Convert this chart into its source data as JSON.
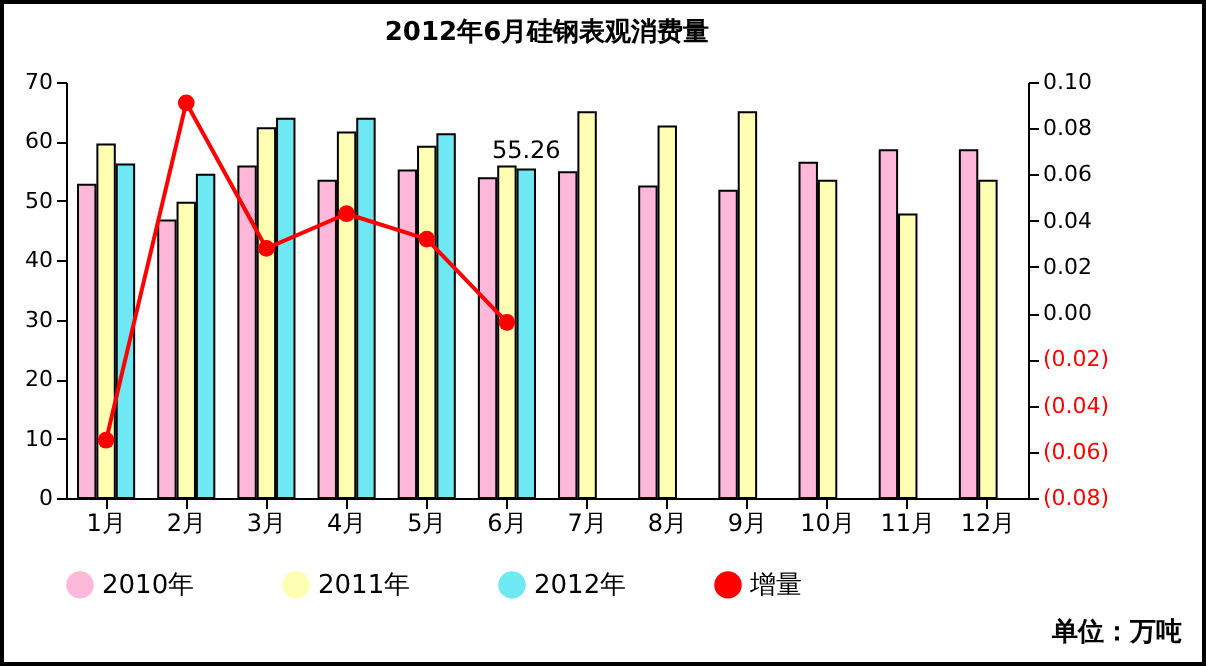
{
  "chart_data": {
    "type": "bar",
    "title": "2012年6月硅钢表观消费量",
    "categories": [
      "1月",
      "2月",
      "3月",
      "4月",
      "5月",
      "6月",
      "7月",
      "8月",
      "9月",
      "10月",
      "11月",
      "12月"
    ],
    "series": [
      {
        "name": "2010年",
        "color": "#ffb8da",
        "values": [
          52.7,
          46.7,
          55.8,
          53.4,
          55.1,
          53.8,
          54.8,
          52.4,
          51.7,
          56.4,
          58.5,
          58.5
        ]
      },
      {
        "name": "2011年",
        "color": "#ffffb3",
        "values": [
          59.5,
          49.7,
          62.2,
          61.5,
          59.1,
          55.8,
          64.9,
          62.5,
          64.9,
          53.4,
          47.7,
          53.4
        ]
      },
      {
        "name": "2012年",
        "color": "#6ee8f2",
        "values": [
          56.1,
          54.4,
          63.8,
          63.8,
          61.2,
          55.26,
          null,
          null,
          null,
          null,
          null,
          null
        ],
        "value_labels": [
          null,
          null,
          null,
          null,
          null,
          "55.26",
          null,
          null,
          null,
          null,
          null,
          null
        ]
      },
      {
        "name": "增量",
        "type": "line",
        "axis": "y2",
        "color": "#ff0000",
        "marker": "circle",
        "values": [
          -0.055,
          0.091,
          0.028,
          0.043,
          0.032,
          -0.004,
          null,
          null,
          null,
          null,
          null,
          null
        ]
      }
    ],
    "ylim": [
      0,
      70
    ],
    "yticks": [
      0,
      10,
      20,
      30,
      40,
      50,
      60,
      70
    ],
    "y2lim": [
      -0.08,
      0.1
    ],
    "y2ticks": [
      {
        "value": 0.1,
        "label": "0.10"
      },
      {
        "value": 0.08,
        "label": "0.08"
      },
      {
        "value": 0.06,
        "label": "0.06"
      },
      {
        "value": 0.04,
        "label": "0.04"
      },
      {
        "value": 0.02,
        "label": "0.02"
      },
      {
        "value": 0,
        "label": "0.00"
      },
      {
        "value": -0.02,
        "label": "(0.02)"
      },
      {
        "value": -0.04,
        "label": "(0.04)"
      },
      {
        "value": -0.06,
        "label": "(0.06)"
      },
      {
        "value": -0.08,
        "label": "(0.08)"
      }
    ],
    "legend": "bottom",
    "annotations": [
      "单位：万吨"
    ]
  }
}
